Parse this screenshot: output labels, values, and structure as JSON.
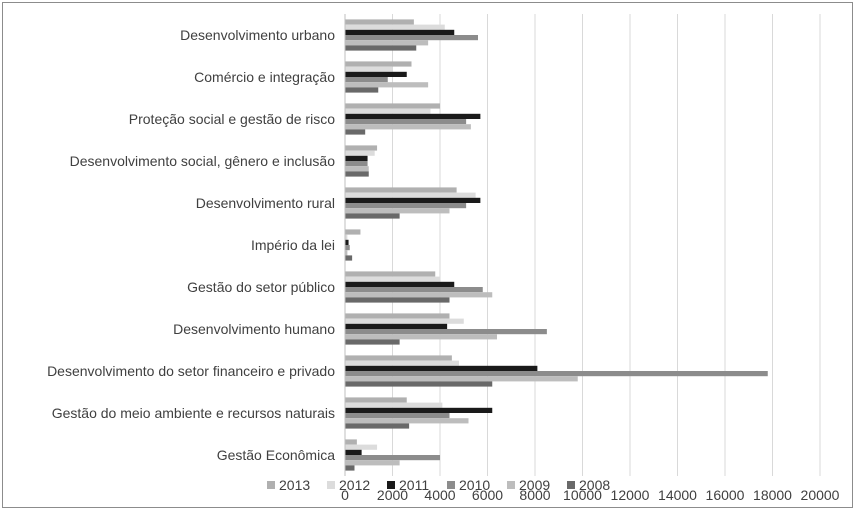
{
  "chart_data": {
    "type": "bar",
    "orientation": "horizontal",
    "categories": [
      "Desenvolvimento urbano",
      "Comércio e integração",
      "Proteção social e gestão de risco",
      "Desenvolvimento social, gênero e inclusão",
      "Desenvolvimento rural",
      "Império da lei",
      "Gestão do setor público",
      "Desenvolvimento humano",
      "Desenvolvimento do setor financeiro e privado",
      "Gestão do meio ambiente e recursos naturais",
      "Gestão Econômica"
    ],
    "series": [
      {
        "name": "2013",
        "color": "#b0b0b0",
        "values": [
          2900,
          2800,
          4000,
          1350,
          4700,
          650,
          3800,
          4400,
          4500,
          2600,
          500
        ]
      },
      {
        "name": "2012",
        "color": "#dcdcdc",
        "values": [
          4200,
          2000,
          3600,
          1250,
          5500,
          100,
          4000,
          5000,
          4800,
          4100,
          1350
        ]
      },
      {
        "name": "2011",
        "color": "#1a1a1a",
        "values": [
          4600,
          2600,
          5700,
          950,
          5700,
          150,
          4600,
          4300,
          8100,
          6200,
          700
        ]
      },
      {
        "name": "2010",
        "color": "#8c8c8c",
        "values": [
          5600,
          1800,
          5100,
          950,
          5100,
          200,
          5800,
          8500,
          17800,
          4400,
          4000
        ]
      },
      {
        "name": "2009",
        "color": "#bdbdbd",
        "values": [
          3500,
          3500,
          5300,
          1000,
          4400,
          100,
          6200,
          6400,
          9800,
          5200,
          2300
        ]
      },
      {
        "name": "2008",
        "color": "#696969",
        "values": [
          3000,
          1400,
          850,
          1000,
          2300,
          300,
          4400,
          2300,
          6200,
          2700,
          400
        ]
      }
    ],
    "xlim": [
      0,
      20000
    ],
    "xticks": [
      0,
      2000,
      4000,
      6000,
      8000,
      10000,
      12000,
      14000,
      16000,
      18000,
      20000
    ],
    "title": "",
    "xlabel": "",
    "ylabel": "",
    "grid": true,
    "legend_position": "bottom"
  }
}
